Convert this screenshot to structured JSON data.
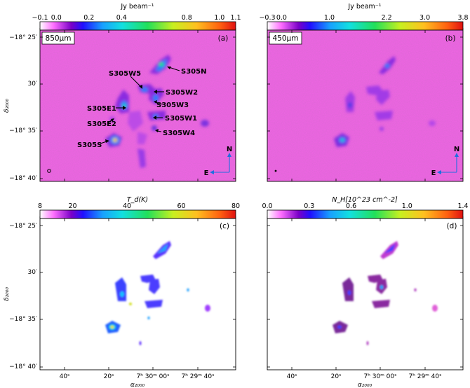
{
  "colors": {
    "map_bg": "#f264e6",
    "compass": "#1f6fe0"
  },
  "colorbars": {
    "a": {
      "unit": "Jy beam⁻¹",
      "min": -0.1,
      "max": 1.1,
      "ticks": [
        "−0.1",
        "0.0",
        "0.2",
        "0.4",
        "0.8",
        "1.0",
        "1.1"
      ],
      "tick_values": [
        -0.1,
        0.0,
        0.2,
        0.4,
        0.8,
        1.0,
        1.1
      ]
    },
    "b": {
      "unit": "Jy beam⁻¹",
      "min": -0.3,
      "max": 3.8,
      "ticks": [
        "−0.3",
        "0.0",
        "1.0",
        "2.2",
        "3.0",
        "3.8"
      ],
      "tick_values": [
        -0.3,
        0.0,
        1.0,
        2.2,
        3.0,
        3.8
      ]
    },
    "c": {
      "unit": "T_d(K)",
      "min": 8,
      "max": 80,
      "ticks": [
        "8",
        "20",
        "40",
        "60",
        "80"
      ],
      "tick_values": [
        8,
        20,
        40,
        60,
        80
      ]
    },
    "d": {
      "unit": "N_H[10^23 cm^-2]",
      "min": 0.0,
      "max": 1.4,
      "ticks": [
        "0.0",
        "0.3",
        "0.6",
        "1.0",
        "1.4"
      ],
      "tick_values": [
        0.0,
        0.3,
        0.6,
        1.0,
        1.4
      ]
    }
  },
  "panels": {
    "a": {
      "tag": "(a)",
      "band": "850μm"
    },
    "b": {
      "tag": "(b)",
      "band": "450μm"
    },
    "c": {
      "tag": "(c)"
    },
    "d": {
      "tag": "(d)"
    }
  },
  "compass": {
    "north": "N",
    "east": "E"
  },
  "sources": [
    "S305N",
    "S305W5",
    "S305W2",
    "S305E1",
    "S305W3",
    "S305W1",
    "S305E2",
    "S305W4",
    "S305S"
  ],
  "axes": {
    "ylabel": "δ₂₀₀₀",
    "xlabel": "α₂₀₀₀",
    "yticks": [
      "−18° 25′",
      "30′",
      "−18° 35′",
      "−18° 40′"
    ],
    "xticks": [
      "40ˢ",
      "20ˢ",
      "7ʰ 30ᵐ 00ˢ",
      "7ʰ 29ᵐ 40ˢ"
    ]
  },
  "chart_data": [
    {
      "panel": "a",
      "type": "heatmap",
      "band": "850μm",
      "zlabel": "Jy beam⁻¹",
      "zlim": [
        -0.1,
        1.1
      ],
      "annotations": [
        "S305N",
        "S305W5",
        "S305W2",
        "S305E1",
        "S305W3",
        "S305W1",
        "S305E2",
        "S305W4",
        "S305S"
      ]
    },
    {
      "panel": "b",
      "type": "heatmap",
      "band": "450μm",
      "zlabel": "Jy beam⁻¹",
      "zlim": [
        -0.3,
        3.8
      ]
    },
    {
      "panel": "c",
      "type": "heatmap",
      "zlabel": "T_d(K)",
      "zlim": [
        8,
        80
      ]
    },
    {
      "panel": "d",
      "type": "heatmap",
      "zlabel": "N_H[10^23 cm^-2]",
      "zlim": [
        0.0,
        1.4
      ]
    }
  ]
}
